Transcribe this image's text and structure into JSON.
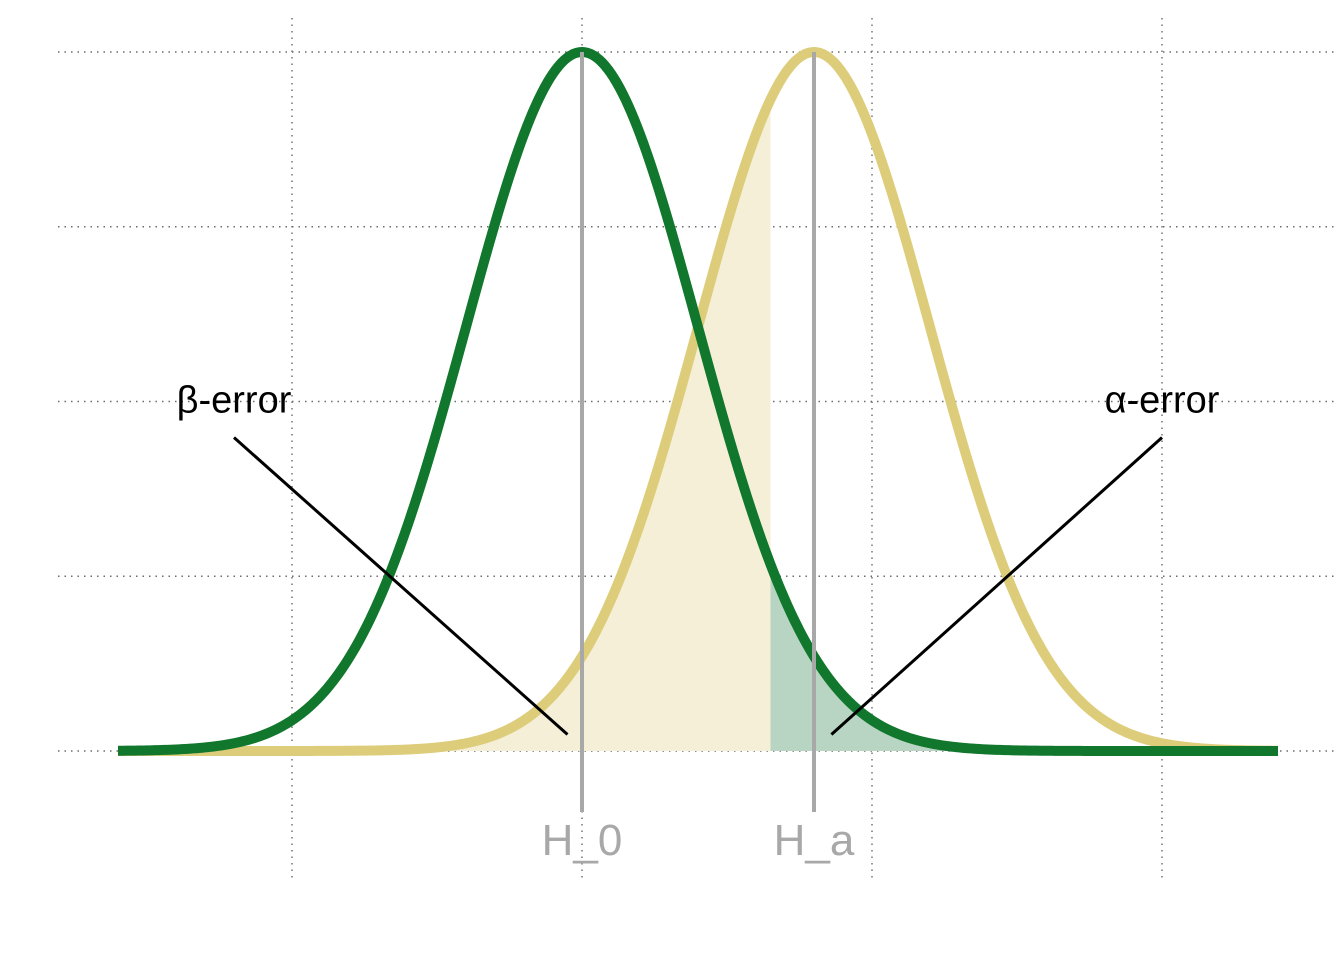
{
  "chart_data": {
    "type": "area",
    "title": "",
    "xlabel": "",
    "ylabel": "",
    "xlim": [
      -4.4,
      4.4
    ],
    "ylim": [
      -0.1,
      1.0
    ],
    "x_ticks": [
      -2,
      0,
      2,
      4
    ],
    "y_ticks": [
      0,
      0.25,
      0.5,
      0.75,
      1.0
    ],
    "grid": true,
    "tick_labels_shown": false,
    "legend": "none",
    "x_domain": [
      -3.2,
      4.8
    ],
    "critical_value": 1.3,
    "series": [
      {
        "name": "",
        "distribution": "normal",
        "mean": 0,
        "sd": 0.8,
        "peak": 1.0,
        "color": "#11772d",
        "shade_from_critical": "right",
        "shade_color": "#b7d5c2"
      },
      {
        "name": "",
        "distribution": "normal",
        "mean": 1.6,
        "sd": 0.8,
        "peak": 1.0,
        "color": "#ddcd7a",
        "shade_from_critical": "left",
        "shade_color": "#f4efd6"
      }
    ],
    "reference_lines": [
      {
        "x": 0,
        "label": "H_0",
        "color": "#a8a8a8"
      },
      {
        "x": 1.6,
        "label": "H_a",
        "color": "#a8a8a8"
      }
    ],
    "annotations": [
      {
        "text": "β-error",
        "label_x": -2.4,
        "label_y": 0.5,
        "arrow_x": -0.1,
        "arrow_y": 0.025
      },
      {
        "text": "α-error",
        "label_x": 4.0,
        "label_y": 0.5,
        "arrow_x": 1.72,
        "arrow_y": 0.025
      }
    ]
  }
}
